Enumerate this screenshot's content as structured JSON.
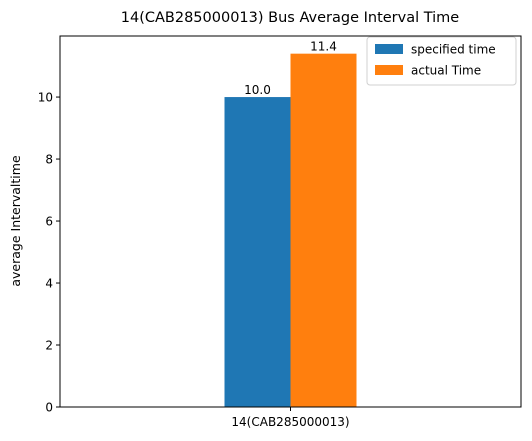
{
  "chart_data": {
    "type": "bar",
    "title": "14(CAB285000013) Bus Average Interval Time",
    "xlabel": "",
    "ylabel": "average Intervaltime",
    "categories": [
      "14(CAB285000013)"
    ],
    "series": [
      {
        "name": "specified time",
        "values": [
          10.0
        ],
        "labels": [
          "10.0"
        ],
        "color": "#1f77b4"
      },
      {
        "name": "actual Time",
        "values": [
          11.4
        ],
        "labels": [
          "11.4"
        ],
        "color": "#ff7f0e"
      }
    ],
    "ylim": [
      0,
      11.97
    ],
    "yticks": [
      0,
      2,
      4,
      6,
      8,
      10
    ],
    "grid": false,
    "legend_position": "top-right"
  }
}
